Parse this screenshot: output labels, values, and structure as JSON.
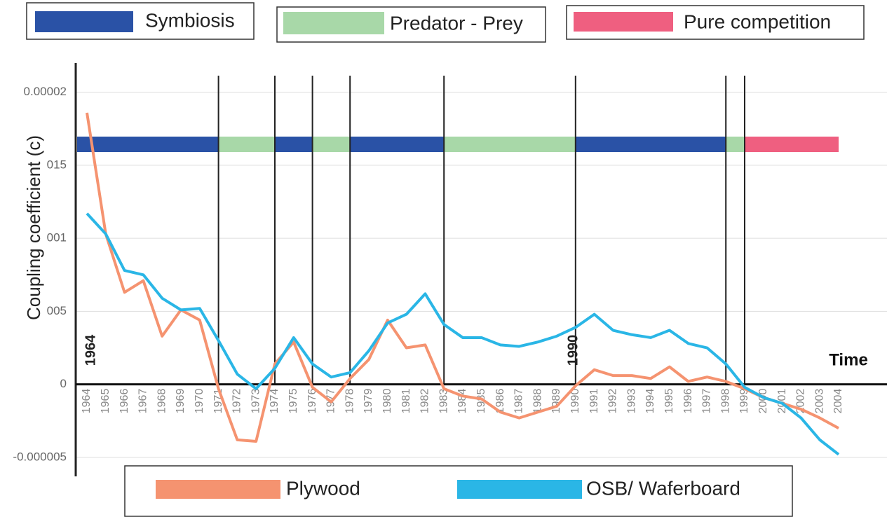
{
  "chart_data": {
    "type": "line",
    "y_label": "Coupling coefficient (c)",
    "annotations": [
      "1964",
      "1990",
      "Time"
    ],
    "regimes": [
      {
        "name": "Symbiosis",
        "color": "#2a52a6"
      },
      {
        "name": "Predator - Prey",
        "color": "#a8d8a8"
      },
      {
        "name": "Pure competition",
        "color": "#ef5f80"
      }
    ],
    "periods": [
      {
        "regime": "Symbiosis",
        "from": "1964",
        "to": "1971"
      },
      {
        "regime": "Predator - Prey",
        "from": "1971",
        "to": "1974"
      },
      {
        "regime": "Symbiosis",
        "from": "1974",
        "to": "1976"
      },
      {
        "regime": "Predator - Prey",
        "from": "1976",
        "to": "1978"
      },
      {
        "regime": "Symbiosis",
        "from": "1978",
        "to": "1983"
      },
      {
        "regime": "Predator - Prey",
        "from": "1983",
        "to": "1990"
      },
      {
        "regime": "Symbiosis",
        "from": "1990",
        "to": "1998"
      },
      {
        "regime": "Predator - Prey",
        "from": "1998",
        "to": "1999"
      },
      {
        "regime": "Pure competition",
        "from": "1999",
        "to": "2004"
      }
    ],
    "categories": [
      "1964",
      "1965",
      "1966",
      "1967",
      "1968",
      "1969",
      "1970",
      "1971",
      "1972",
      "1973",
      "1974",
      "1975",
      "1976",
      "1977",
      "1978",
      "1979",
      "1980",
      "1981",
      "1982",
      "1983",
      "1984",
      "1985",
      "1986",
      "1987",
      "1988",
      "1989",
      "1990",
      "1991",
      "1992",
      "1993",
      "1994",
      "1995",
      "1996",
      "1997",
      "1998",
      "1999",
      "2000",
      "2001",
      "2002",
      "2003",
      "2004"
    ],
    "series": [
      {
        "name": "Plywood",
        "color": "#f59370",
        "values": [
          1.86e-05,
          1.03e-05,
          6.3e-06,
          7.1e-06,
          3.3e-06,
          5.1e-06,
          4.4e-06,
          -3e-07,
          -3.8e-06,
          -3.9e-06,
          1.4e-06,
          2.9e-06,
          -2e-07,
          -1.2e-06,
          4e-07,
          1.7e-06,
          4.4e-06,
          2.5e-06,
          2.7e-06,
          -3e-07,
          -8e-07,
          -1e-06,
          -1.9e-06,
          -2.3e-06,
          -1.9e-06,
          -1.5e-06,
          -1e-07,
          1e-06,
          6e-07,
          6e-07,
          4e-07,
          1.2e-06,
          2e-07,
          5e-07,
          2e-07,
          -3e-07,
          -9e-07,
          -1.3e-06,
          -1.7e-06,
          -2.3e-06,
          -3e-06
        ]
      },
      {
        "name": "OSB/ Waferboard",
        "color": "#2ab6e6",
        "values": [
          1.17e-05,
          1.03e-05,
          7.8e-06,
          7.5e-06,
          5.9e-06,
          5.1e-06,
          5.2e-06,
          3e-06,
          7e-07,
          -3e-07,
          1.1e-06,
          3.2e-06,
          1.4e-06,
          5e-07,
          8e-07,
          2.3e-06,
          4.2e-06,
          4.8e-06,
          6.2e-06,
          4.1e-06,
          3.2e-06,
          3.2e-06,
          2.7e-06,
          2.6e-06,
          2.9e-06,
          3.3e-06,
          3.9e-06,
          4.8e-06,
          3.7e-06,
          3.4e-06,
          3.2e-06,
          3.7e-06,
          2.8e-06,
          2.5e-06,
          1.4e-06,
          -2e-07,
          -9e-07,
          -1.3e-06,
          -2.3e-06,
          -3.8e-06,
          -4.8e-06
        ]
      }
    ],
    "ylim": [
      -6.3e-06,
      2.2e-05
    ],
    "yticks": [
      2e-05,
      {
        "value": 1.5e-05,
        "label": "015"
      },
      {
        "value": 1e-05,
        "label": "001"
      },
      {
        "value": 5e-06,
        "label": "005"
      },
      0,
      -5e-06
    ],
    "grid": true
  }
}
